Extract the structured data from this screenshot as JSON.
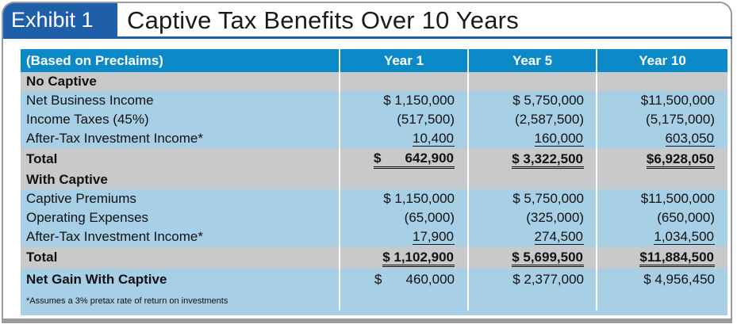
{
  "exhibit": {
    "label": "Exhibit 1",
    "title": "Captive Tax Benefits Over 10 Years"
  },
  "colors": {
    "title_bar": "#1f5ea8",
    "header_bg": "#0c8ac7",
    "grey_row": "#c7c9cb",
    "blue_row": "#a7cfe6"
  },
  "table": {
    "columns": [
      "(Based on Preclaims)",
      "Year 1",
      "Year 5",
      "Year 10"
    ],
    "sections": {
      "no_captive": {
        "heading": "No Captive",
        "rows": [
          {
            "label": "Net Business Income",
            "values": [
              "$ 1,150,000",
              "$ 5,750,000",
              "$11,500,000"
            ]
          },
          {
            "label": "Income Taxes (45%)",
            "values": [
              "(517,500)",
              "(2,587,500)",
              "(5,175,000)"
            ]
          },
          {
            "label": "After-Tax Investment Income*",
            "values": [
              "10,400",
              "160,000",
              "603,050"
            ]
          }
        ],
        "total": {
          "label": "Total",
          "values": [
            "642,900",
            "$ 3,322,500",
            "$6,928,050"
          ],
          "y1_dollar": "$"
        }
      },
      "with_captive": {
        "heading": "With Captive",
        "rows": [
          {
            "label": "Captive Premiums",
            "values": [
              "$ 1,150,000",
              "$ 5,750,000",
              "$11,500,000"
            ]
          },
          {
            "label": "Operating Expenses",
            "values": [
              "(65,000)",
              "(325,000)",
              "(650,000)"
            ]
          },
          {
            "label": "After-Tax Investment Income*",
            "values": [
              "17,900",
              "274,500",
              "1,034,500"
            ]
          }
        ],
        "total": {
          "label": "Total",
          "values": [
            "$ 1,102,900",
            "$ 5,699,500",
            "$11,884,500"
          ]
        }
      }
    },
    "net_gain": {
      "label": "Net Gain With Captive",
      "values": [
        "460,000",
        "$ 2,377,000",
        "$ 4,956,450"
      ],
      "y1_dollar": "$"
    },
    "footnote": "*Assumes a 3% pretax rate of return on investments"
  }
}
